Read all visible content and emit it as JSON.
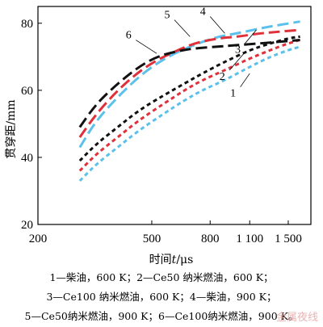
{
  "chart_data": {
    "type": "line",
    "title": "",
    "xlabel_prefix": "时间",
    "xlabel_var": "t",
    "xlabel_unit": "/μs",
    "ylabel_prefix": "贯穿距",
    "ylabel_unit": "/mm",
    "x_scale": "log",
    "xlim": [
      200,
      1800
    ],
    "ylim": [
      20,
      85
    ],
    "x_ticks": [
      200,
      500,
      800,
      1100,
      1500
    ],
    "x_tick_labels": [
      "200",
      "500",
      "800",
      "1 100",
      "1 500"
    ],
    "y_ticks": [
      20,
      40,
      60,
      80
    ],
    "y_tick_labels": [
      "20",
      "40",
      "60",
      "80"
    ],
    "grid": false,
    "series": [
      {
        "name": "1",
        "color": "#5bc0ea",
        "dash": "5,4",
        "x": [
          280,
          320,
          380,
          450,
          550,
          650,
          750,
          900,
          1100,
          1300,
          1500,
          1650
        ],
        "y": [
          33,
          38,
          43,
          48,
          53,
          57,
          60,
          63,
          67,
          70,
          72,
          73
        ]
      },
      {
        "name": "2",
        "color": "#e0303a",
        "dash": "5,4",
        "x": [
          280,
          320,
          380,
          450,
          550,
          650,
          750,
          900,
          1100,
          1300,
          1500,
          1650
        ],
        "y": [
          36,
          41,
          46,
          51,
          56,
          60,
          63,
          66,
          69.5,
          72,
          74,
          75
        ]
      },
      {
        "name": "3",
        "color": "#111111",
        "dash": "5,4",
        "x": [
          280,
          320,
          380,
          450,
          550,
          650,
          750,
          900,
          1100,
          1300,
          1500,
          1650
        ],
        "y": [
          39,
          44,
          49,
          54,
          58.5,
          62,
          65,
          68.5,
          72,
          74,
          75.5,
          76
        ]
      },
      {
        "name": "4",
        "color": "#5bc0ea",
        "dash": "14,6",
        "x": [
          280,
          320,
          380,
          450,
          520,
          600,
          700,
          850,
          1000,
          1200,
          1400,
          1650
        ],
        "y": [
          43,
          51,
          58,
          64,
          68,
          71,
          73.5,
          76,
          77,
          78.5,
          79.5,
          80.5
        ]
      },
      {
        "name": "5",
        "color": "#e0303a",
        "dash": "14,6",
        "x": [
          280,
          320,
          380,
          450,
          520,
          600,
          700,
          850,
          1000,
          1200,
          1400,
          1650
        ],
        "y": [
          46,
          53,
          60,
          65.5,
          69,
          71.5,
          74,
          75.5,
          76,
          77,
          77.5,
          78
        ]
      },
      {
        "name": "6",
        "color": "#111111",
        "dash": "14,6",
        "x": [
          280,
          320,
          380,
          450,
          520,
          600,
          700,
          850,
          1000,
          1200,
          1400,
          1650
        ],
        "y": [
          49,
          56,
          62,
          67,
          70,
          71.5,
          72.5,
          73,
          73.5,
          74,
          74.5,
          75
        ]
      }
    ],
    "annotations": [
      {
        "text": "1",
        "x": 1020,
        "y": 61,
        "tx": 1100,
        "ty": 65
      },
      {
        "text": "2",
        "x": 935,
        "y": 66,
        "tx": 1050,
        "ty": 71
      },
      {
        "text": "3",
        "x": 1060,
        "y": 74,
        "tx": 1160,
        "ty": 78
      },
      {
        "text": "4",
        "x": 800,
        "y": 82,
        "tx": 900,
        "ty": 77
      },
      {
        "text": "5",
        "x": 600,
        "y": 81,
        "tx": 680,
        "ty": 76
      },
      {
        "text": "6",
        "x": 440,
        "y": 75,
        "tx": 520,
        "ty": 71
      }
    ]
  },
  "legend_lines": [
    "1—柴油，600 K；2—Ce50 纳米燃油，600 K；",
    "3—Ce100 纳米燃油，600 K；4—柴油，900 K；",
    "5—Ce50纳米燃油，900 K；6—Ce100纳米燃油，900 K。"
  ],
  "watermark": "金属夜线"
}
